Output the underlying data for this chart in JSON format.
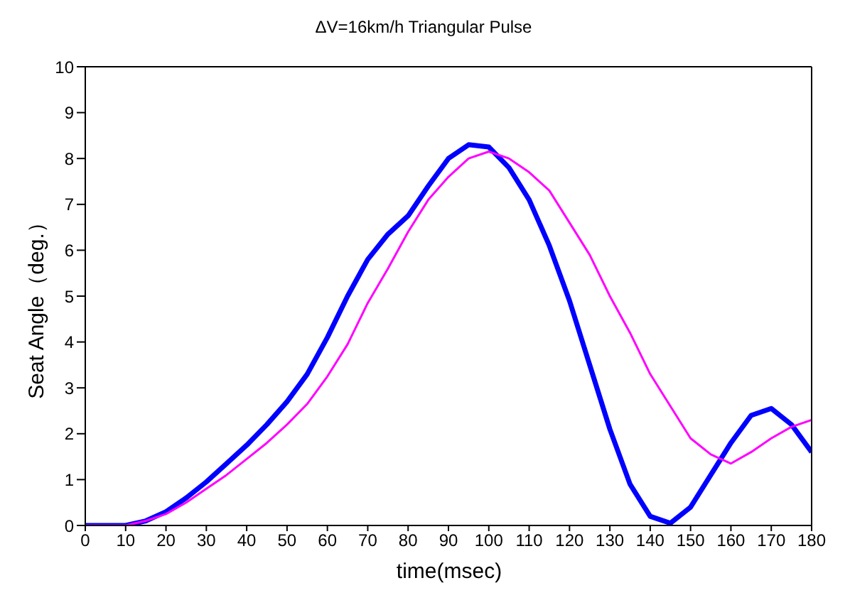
{
  "chart_data": {
    "type": "line",
    "title": "ΔV=16km/h Triangular Pulse",
    "xlabel": "time(msec)",
    "ylabel": "Seat Angle（deg.）",
    "x": [
      0,
      5,
      10,
      15,
      20,
      25,
      30,
      35,
      40,
      45,
      50,
      55,
      60,
      65,
      70,
      75,
      80,
      85,
      90,
      95,
      100,
      105,
      110,
      115,
      120,
      125,
      130,
      135,
      140,
      145,
      150,
      155,
      160,
      165,
      170,
      175,
      180
    ],
    "series": [
      {
        "color": "#ff00ff",
        "values": [
          0,
          0,
          0,
          0.1,
          0.25,
          0.5,
          0.8,
          1.1,
          1.45,
          1.8,
          2.2,
          2.65,
          3.25,
          3.95,
          4.85,
          5.6,
          6.4,
          7.1,
          7.6,
          8.0,
          8.15,
          8.0,
          7.7,
          7.3,
          6.6,
          5.9,
          5.0,
          4.2,
          3.3,
          2.6,
          1.9,
          1.55,
          1.35,
          1.6,
          1.9,
          2.15,
          2.3
        ]
      },
      {
        "color": "#0000ff",
        "values": [
          0,
          0,
          0,
          0.1,
          0.3,
          0.6,
          0.95,
          1.35,
          1.75,
          2.2,
          2.7,
          3.3,
          4.1,
          5.0,
          5.8,
          6.35,
          6.75,
          7.4,
          8.0,
          8.3,
          8.25,
          7.8,
          7.1,
          6.1,
          4.9,
          3.5,
          2.1,
          0.9,
          0.2,
          0.05,
          0.4,
          1.1,
          1.8,
          2.4,
          2.55,
          2.2,
          1.6
        ]
      }
    ],
    "xlim": [
      0,
      180
    ],
    "xticks": [
      0,
      10,
      20,
      30,
      40,
      50,
      60,
      70,
      80,
      90,
      100,
      110,
      120,
      130,
      140,
      150,
      160,
      170,
      180
    ],
    "ylim": [
      0,
      10
    ],
    "yticks": [
      0,
      1,
      2,
      3,
      4,
      5,
      6,
      7,
      8,
      9,
      10
    ],
    "grid": false,
    "marker": "none",
    "line_style": "solid",
    "legend": false
  }
}
